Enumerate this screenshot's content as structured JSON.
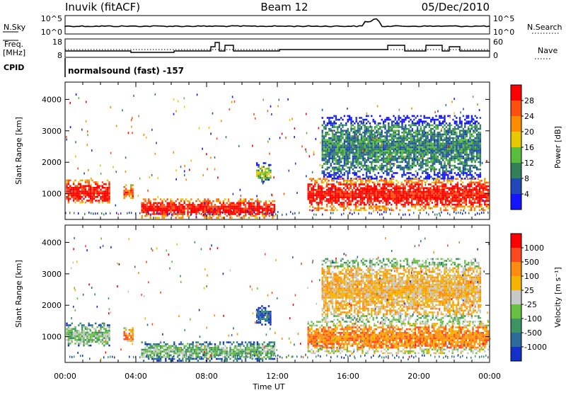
{
  "header": {
    "station": "Inuvik (fitACF)",
    "beam": "Beam 12",
    "date": "05/Dec/2010"
  },
  "strips": {
    "nsky_label": "N.Sky",
    "nsky_ticks": [
      "10^5",
      "10^0"
    ],
    "nsearch_label": "N.Search",
    "nsearch_ticks": [
      "10^5",
      "10^0"
    ],
    "freq_label_1": "Freq.",
    "freq_label_2": "[MHz]",
    "freq_ticks": [
      "18",
      "8"
    ],
    "nave_label": "Nave",
    "nave_ticks": [
      "60",
      "0"
    ],
    "cpid_label": "CPID",
    "cpid_text": "normalsound (fast) -157"
  },
  "chart_data": [
    {
      "type": "heatmap",
      "name": "power",
      "xlabel": "Time UT",
      "ylabel": "Slant Range [km]",
      "x_ticks": [
        "00:00",
        "04:00",
        "08:00",
        "12:00",
        "16:00",
        "20:00",
        "00:00"
      ],
      "xlim_hours": [
        0,
        24
      ],
      "y_ticks": [
        1000,
        2000,
        3000,
        4000
      ],
      "ylim": [
        180,
        4550
      ],
      "colorbar_label": "Power [dB]",
      "colorbar_ticks": [
        4,
        8,
        12,
        16,
        20,
        24,
        28
      ],
      "colorbar_colors": [
        "#1414ff",
        "#2048b8",
        "#30805a",
        "#58bc3c",
        "#e8c800",
        "#ff8c00",
        "#ff5010",
        "#ff0000"
      ],
      "regions": [
        {
          "t0": 0.05,
          "t1": 2.5,
          "r0": 700,
          "r1": 1450,
          "level": 7
        },
        {
          "t0": 3.3,
          "t1": 3.8,
          "r0": 850,
          "r1": 1300,
          "level": 6
        },
        {
          "t0": 4.3,
          "t1": 11.8,
          "r0": 250,
          "r1": 850,
          "level": 7
        },
        {
          "t0": 10.8,
          "t1": 11.6,
          "r0": 1400,
          "r1": 2000,
          "level": 3
        },
        {
          "t0": 13.7,
          "t1": 23.9,
          "r0": 500,
          "r1": 1500,
          "level": 7
        },
        {
          "t0": 14.5,
          "t1": 23.5,
          "r0": 1500,
          "r1": 3500,
          "level": 2
        }
      ]
    },
    {
      "type": "heatmap",
      "name": "velocity",
      "xlabel": "Time UT",
      "ylabel": "Slant Range [km]",
      "x_ticks": [
        "00:00",
        "04:00",
        "08:00",
        "12:00",
        "16:00",
        "20:00",
        "00:00"
      ],
      "xlim_hours": [
        0,
        24
      ],
      "y_ticks": [
        1000,
        2000,
        3000,
        4000
      ],
      "ylim": [
        180,
        4550
      ],
      "colorbar_label": "Velocity [m s⁻¹]",
      "colorbar_ticks": [
        "1000",
        "500",
        "100",
        "25",
        "-25",
        "-100",
        "-500",
        "-1000"
      ],
      "colorbar_colors": [
        "#1430c8",
        "#2c6c9c",
        "#3c9464",
        "#68c040",
        "#c8c8c8",
        "#f4b400",
        "#ff8c10",
        "#ff4820",
        "#ff0000"
      ],
      "regions": [
        {
          "t0": 0.05,
          "t1": 2.5,
          "r0": 700,
          "r1": 1450,
          "level": 3
        },
        {
          "t0": 3.3,
          "t1": 3.8,
          "r0": 850,
          "r1": 1300,
          "level": 6
        },
        {
          "t0": 4.3,
          "t1": 11.8,
          "r0": 250,
          "r1": 850,
          "level": 3
        },
        {
          "t0": 10.8,
          "t1": 11.6,
          "r0": 1400,
          "r1": 2000,
          "level": 1
        },
        {
          "t0": 13.7,
          "t1": 23.9,
          "r0": 500,
          "r1": 1500,
          "level": 6
        },
        {
          "t0": 14.5,
          "t1": 23.5,
          "r0": 1500,
          "r1": 3500,
          "level": 5
        }
      ]
    }
  ]
}
